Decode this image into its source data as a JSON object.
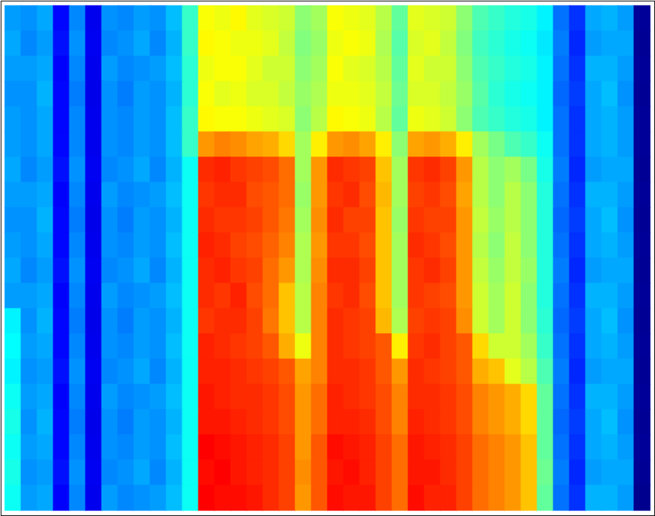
{
  "chart_data": {
    "type": "heatmap",
    "tick_labels": false,
    "cells": [
      [
        44,
        43,
        45,
        30,
        42,
        26,
        43,
        42,
        44,
        43,
        47,
        58,
        76,
        75,
        77,
        74,
        73,
        72,
        66,
        68,
        76,
        75,
        74,
        70,
        62,
        74,
        73,
        72,
        66,
        60,
        58,
        56,
        55,
        52,
        40,
        34,
        45,
        46,
        44,
        8
      ],
      [
        45,
        42,
        44,
        31,
        43,
        27,
        42,
        43,
        45,
        42,
        46,
        58,
        77,
        76,
        75,
        75,
        74,
        71,
        65,
        67,
        75,
        76,
        75,
        69,
        61,
        73,
        74,
        71,
        65,
        59,
        57,
        55,
        54,
        51,
        41,
        33,
        44,
        45,
        45,
        7
      ],
      [
        44,
        44,
        45,
        29,
        42,
        26,
        44,
        42,
        43,
        44,
        47,
        57,
        75,
        76,
        76,
        74,
        72,
        72,
        66,
        68,
        76,
        74,
        73,
        70,
        62,
        74,
        72,
        72,
        66,
        60,
        58,
        56,
        55,
        52,
        40,
        34,
        46,
        46,
        44,
        8
      ],
      [
        43,
        43,
        46,
        30,
        41,
        25,
        43,
        41,
        44,
        43,
        46,
        57,
        76,
        74,
        75,
        73,
        73,
        71,
        67,
        69,
        75,
        75,
        74,
        71,
        63,
        73,
        73,
        71,
        67,
        61,
        57,
        55,
        54,
        52,
        39,
        35,
        45,
        47,
        43,
        7
      ],
      [
        44,
        43,
        45,
        30,
        42,
        26,
        43,
        42,
        44,
        43,
        47,
        58,
        77,
        76,
        76,
        75,
        74,
        73,
        66,
        70,
        77,
        76,
        75,
        70,
        62,
        75,
        74,
        72,
        66,
        60,
        58,
        56,
        55,
        52,
        40,
        34,
        45,
        46,
        44,
        8
      ],
      [
        44,
        43,
        45,
        30,
        42,
        26,
        43,
        42,
        44,
        43,
        47,
        58,
        86,
        88,
        87,
        85,
        84,
        80,
        68,
        78,
        86,
        87,
        85,
        78,
        66,
        85,
        86,
        84,
        78,
        68,
        64,
        60,
        58,
        54,
        40,
        34,
        45,
        46,
        44,
        8
      ],
      [
        45,
        42,
        44,
        31,
        43,
        27,
        42,
        43,
        45,
        42,
        46,
        54,
        96,
        97,
        95,
        94,
        93,
        90,
        68,
        86,
        96,
        95,
        94,
        82,
        68,
        95,
        96,
        94,
        86,
        70,
        66,
        68,
        64,
        55,
        41,
        33,
        44,
        45,
        45,
        7
      ],
      [
        44,
        44,
        45,
        29,
        42,
        26,
        44,
        42,
        43,
        44,
        47,
        54,
        95,
        96,
        96,
        93,
        92,
        90,
        67,
        86,
        95,
        96,
        93,
        83,
        68,
        94,
        95,
        93,
        85,
        70,
        66,
        70,
        66,
        56,
        40,
        34,
        46,
        46,
        44,
        8
      ],
      [
        43,
        43,
        46,
        30,
        41,
        25,
        43,
        41,
        44,
        43,
        46,
        54,
        96,
        95,
        95,
        94,
        92,
        89,
        68,
        87,
        96,
        94,
        94,
        82,
        67,
        95,
        94,
        94,
        86,
        71,
        67,
        70,
        66,
        56,
        39,
        35,
        45,
        47,
        43,
        7
      ],
      [
        44,
        43,
        45,
        30,
        42,
        26,
        43,
        42,
        44,
        43,
        47,
        54,
        97,
        96,
        94,
        93,
        91,
        88,
        69,
        86,
        95,
        95,
        93,
        82,
        68,
        96,
        95,
        93,
        86,
        70,
        66,
        71,
        66,
        56,
        40,
        34,
        45,
        46,
        44,
        8
      ],
      [
        45,
        42,
        44,
        31,
        43,
        27,
        42,
        43,
        45,
        42,
        46,
        54,
        96,
        97,
        95,
        94,
        90,
        86,
        69,
        87,
        96,
        96,
        94,
        82,
        68,
        95,
        96,
        94,
        86,
        71,
        67,
        71,
        67,
        56,
        41,
        33,
        44,
        45,
        45,
        7
      ],
      [
        44,
        44,
        45,
        29,
        42,
        26,
        44,
        42,
        43,
        44,
        47,
        54,
        96,
        95,
        97,
        93,
        90,
        82,
        70,
        88,
        95,
        96,
        93,
        82,
        68,
        95,
        94,
        93,
        86,
        72,
        68,
        72,
        66,
        56,
        40,
        34,
        46,
        46,
        44,
        8
      ],
      [
        52,
        43,
        46,
        30,
        41,
        25,
        43,
        41,
        44,
        43,
        46,
        54,
        95,
        96,
        96,
        94,
        89,
        82,
        70,
        88,
        96,
        95,
        94,
        83,
        69,
        94,
        95,
        94,
        87,
        72,
        68,
        72,
        66,
        57,
        39,
        35,
        45,
        47,
        43,
        7
      ],
      [
        53,
        44,
        45,
        30,
        42,
        26,
        43,
        42,
        44,
        43,
        47,
        54,
        97,
        96,
        95,
        94,
        92,
        84,
        75,
        88,
        96,
        95,
        94,
        92,
        78,
        95,
        96,
        94,
        92,
        80,
        72,
        72,
        68,
        58,
        40,
        34,
        45,
        46,
        44,
        8
      ],
      [
        52,
        43,
        44,
        31,
        43,
        27,
        42,
        43,
        45,
        42,
        46,
        54,
        97,
        97,
        96,
        95,
        94,
        92,
        85,
        88,
        96,
        96,
        95,
        92,
        86,
        96,
        95,
        94,
        92,
        84,
        82,
        74,
        70,
        60,
        41,
        33,
        44,
        45,
        45,
        7
      ],
      [
        54,
        44,
        45,
        29,
        42,
        26,
        44,
        42,
        43,
        44,
        47,
        54,
        98,
        97,
        96,
        96,
        95,
        93,
        86,
        90,
        97,
        96,
        95,
        93,
        88,
        96,
        96,
        95,
        93,
        88,
        86,
        84,
        80,
        62,
        40,
        34,
        46,
        46,
        44,
        8
      ],
      [
        55,
        43,
        46,
        30,
        41,
        25,
        43,
        41,
        44,
        43,
        46,
        54,
        98,
        98,
        97,
        96,
        95,
        93,
        86,
        90,
        97,
        97,
        96,
        93,
        88,
        97,
        96,
        95,
        93,
        88,
        86,
        84,
        80,
        62,
        39,
        35,
        45,
        47,
        43,
        7
      ],
      [
        54,
        44,
        45,
        30,
        42,
        26,
        43,
        42,
        44,
        43,
        47,
        54,
        100,
        99,
        98,
        97,
        96,
        94,
        86,
        92,
        99,
        98,
        97,
        94,
        90,
        98,
        97,
        96,
        94,
        90,
        88,
        86,
        82,
        62,
        40,
        34,
        45,
        46,
        44,
        8
      ],
      [
        55,
        43,
        44,
        31,
        43,
        27,
        42,
        43,
        45,
        42,
        46,
        54,
        99,
        100,
        98,
        97,
        96,
        94,
        87,
        92,
        98,
        99,
        97,
        94,
        90,
        98,
        98,
        96,
        94,
        90,
        88,
        86,
        82,
        63,
        41,
        33,
        44,
        45,
        45,
        7
      ],
      [
        54,
        44,
        45,
        29,
        42,
        26,
        44,
        42,
        43,
        44,
        47,
        54,
        100,
        99,
        99,
        98,
        96,
        94,
        86,
        92,
        99,
        98,
        98,
        94,
        90,
        99,
        97,
        97,
        94,
        90,
        88,
        86,
        82,
        62,
        40,
        34,
        46,
        46,
        44,
        6
      ]
    ]
  }
}
